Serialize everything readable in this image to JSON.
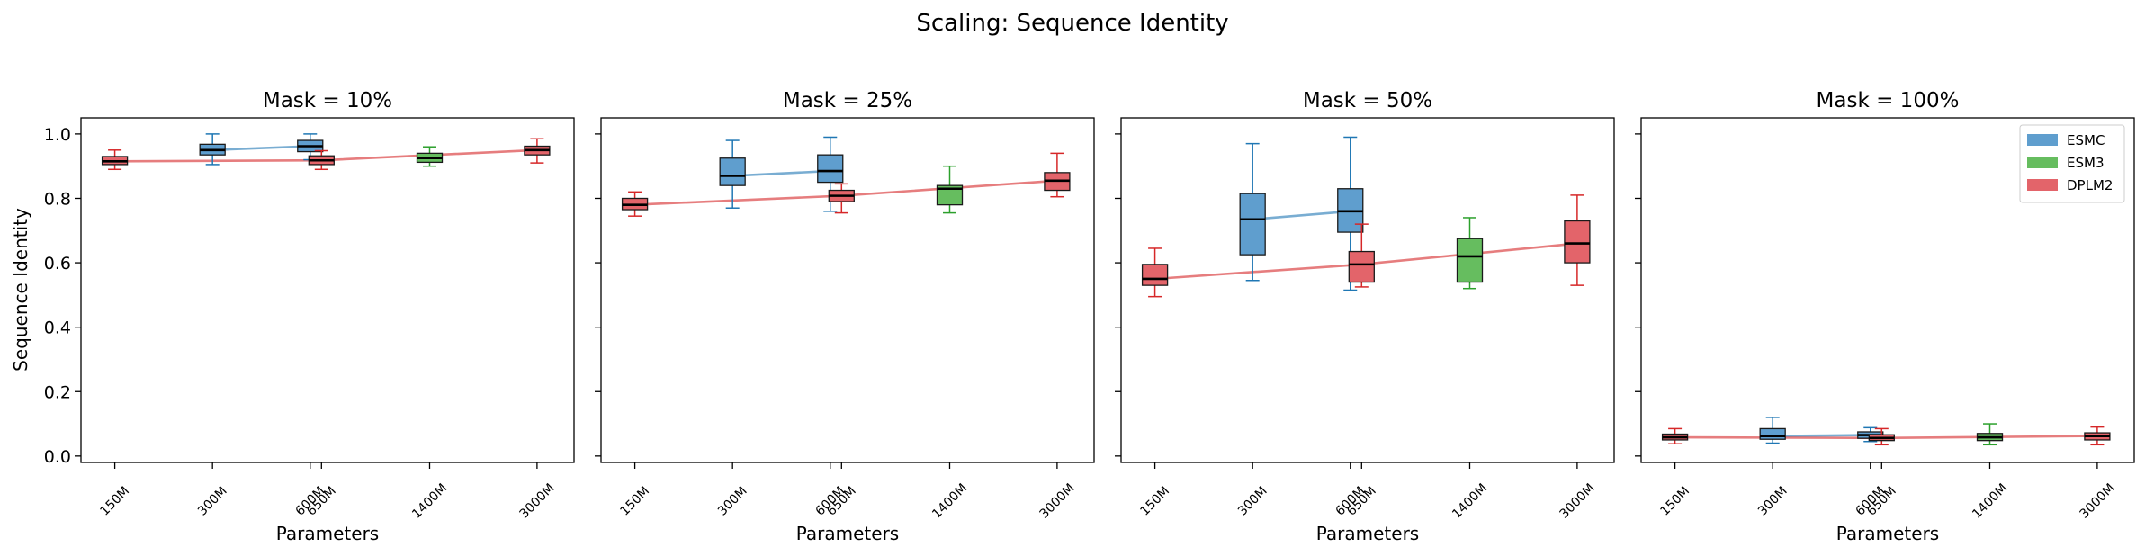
{
  "suptitle": "Scaling: Sequence Identity",
  "chart_data": {
    "type": "box",
    "title": "Scaling: Sequence Identity",
    "xlabel": "Parameters",
    "ylabel": "Sequence Identity",
    "ylim": [
      -0.02,
      1.05
    ],
    "yticks": [
      "0.0",
      "0.2",
      "0.4",
      "0.6",
      "0.8",
      "1.0"
    ],
    "x_scale": "log",
    "xlim_millions": [
      118,
      3900
    ],
    "legend_location": "upper right (last panel)",
    "grid": false,
    "series_colors": {
      "ESMC": "#1f77b4",
      "ESM3": "#2ca02c",
      "DPLM2": "#d62728"
    },
    "series_fill": {
      "ESMC": "#5f9ece",
      "ESM3": "#66bd5f",
      "DPLM2": "#e3646a"
    },
    "legend": [
      "ESMC",
      "ESM3",
      "DPLM2"
    ],
    "panels": [
      {
        "title": "Mask = 10%",
        "series": [
          {
            "name": "ESMC",
            "boxes": [
              {
                "x_label": "300M",
                "x": 300,
                "whislo": 0.905,
                "q1": 0.935,
                "med": 0.95,
                "q3": 0.968,
                "whishi": 1.0
              },
              {
                "x_label": "600M",
                "x": 600,
                "whislo": 0.92,
                "q1": 0.945,
                "med": 0.962,
                "q3": 0.98,
                "whishi": 1.0
              }
            ]
          },
          {
            "name": "ESM3",
            "boxes": [
              {
                "x_label": "1400M",
                "x": 1400,
                "whislo": 0.9,
                "q1": 0.912,
                "med": 0.925,
                "q3": 0.94,
                "whishi": 0.96
              }
            ]
          },
          {
            "name": "DPLM2",
            "boxes": [
              {
                "x_label": "150M",
                "x": 150,
                "whislo": 0.89,
                "q1": 0.905,
                "med": 0.915,
                "q3": 0.93,
                "whishi": 0.95
              },
              {
                "x_label": "650M",
                "x": 650,
                "whislo": 0.89,
                "q1": 0.905,
                "med": 0.918,
                "q3": 0.932,
                "whishi": 0.948
              },
              {
                "x_label": "3000M",
                "x": 3000,
                "whislo": 0.91,
                "q1": 0.935,
                "med": 0.95,
                "q3": 0.962,
                "whishi": 0.985
              }
            ]
          }
        ]
      },
      {
        "title": "Mask = 25%",
        "series": [
          {
            "name": "ESMC",
            "boxes": [
              {
                "x_label": "300M",
                "x": 300,
                "whislo": 0.77,
                "q1": 0.84,
                "med": 0.87,
                "q3": 0.925,
                "whishi": 0.98
              },
              {
                "x_label": "600M",
                "x": 600,
                "whislo": 0.76,
                "q1": 0.85,
                "med": 0.885,
                "q3": 0.935,
                "whishi": 0.99
              }
            ]
          },
          {
            "name": "ESM3",
            "boxes": [
              {
                "x_label": "1400M",
                "x": 1400,
                "whislo": 0.755,
                "q1": 0.78,
                "med": 0.83,
                "q3": 0.84,
                "whishi": 0.9
              }
            ]
          },
          {
            "name": "DPLM2",
            "boxes": [
              {
                "x_label": "150M",
                "x": 150,
                "whislo": 0.745,
                "q1": 0.765,
                "med": 0.78,
                "q3": 0.8,
                "whishi": 0.82
              },
              {
                "x_label": "650M",
                "x": 650,
                "whislo": 0.755,
                "q1": 0.79,
                "med": 0.808,
                "q3": 0.825,
                "whishi": 0.845
              },
              {
                "x_label": "3000M",
                "x": 3000,
                "whislo": 0.805,
                "q1": 0.825,
                "med": 0.855,
                "q3": 0.88,
                "whishi": 0.94
              }
            ]
          }
        ]
      },
      {
        "title": "Mask = 50%",
        "series": [
          {
            "name": "ESMC",
            "boxes": [
              {
                "x_label": "300M",
                "x": 300,
                "whislo": 0.545,
                "q1": 0.625,
                "med": 0.735,
                "q3": 0.815,
                "whishi": 0.97
              },
              {
                "x_label": "600M",
                "x": 600,
                "whislo": 0.515,
                "q1": 0.695,
                "med": 0.76,
                "q3": 0.83,
                "whishi": 0.99
              }
            ]
          },
          {
            "name": "ESM3",
            "boxes": [
              {
                "x_label": "1400M",
                "x": 1400,
                "whislo": 0.52,
                "q1": 0.54,
                "med": 0.62,
                "q3": 0.675,
                "whishi": 0.74
              }
            ]
          },
          {
            "name": "DPLM2",
            "boxes": [
              {
                "x_label": "150M",
                "x": 150,
                "whislo": 0.495,
                "q1": 0.53,
                "med": 0.55,
                "q3": 0.595,
                "whishi": 0.645
              },
              {
                "x_label": "650M",
                "x": 650,
                "whislo": 0.525,
                "q1": 0.54,
                "med": 0.595,
                "q3": 0.635,
                "whishi": 0.72
              },
              {
                "x_label": "3000M",
                "x": 3000,
                "whislo": 0.53,
                "q1": 0.6,
                "med": 0.66,
                "q3": 0.73,
                "whishi": 0.81
              }
            ]
          }
        ]
      },
      {
        "title": "Mask = 100%",
        "series": [
          {
            "name": "ESMC",
            "boxes": [
              {
                "x_label": "300M",
                "x": 300,
                "whislo": 0.04,
                "q1": 0.052,
                "med": 0.062,
                "q3": 0.085,
                "whishi": 0.12
              },
              {
                "x_label": "600M",
                "x": 600,
                "whislo": 0.045,
                "q1": 0.055,
                "med": 0.065,
                "q3": 0.075,
                "whishi": 0.088
              }
            ]
          },
          {
            "name": "ESM3",
            "boxes": [
              {
                "x_label": "1400M",
                "x": 1400,
                "whislo": 0.035,
                "q1": 0.048,
                "med": 0.058,
                "q3": 0.07,
                "whishi": 0.1
              }
            ]
          },
          {
            "name": "DPLM2",
            "boxes": [
              {
                "x_label": "150M",
                "x": 150,
                "whislo": 0.038,
                "q1": 0.05,
                "med": 0.058,
                "q3": 0.068,
                "whishi": 0.085
              },
              {
                "x_label": "650M",
                "x": 650,
                "whislo": 0.035,
                "q1": 0.048,
                "med": 0.056,
                "q3": 0.066,
                "whishi": 0.085
              },
              {
                "x_label": "3000M",
                "x": 3000,
                "whislo": 0.035,
                "q1": 0.05,
                "med": 0.062,
                "q3": 0.072,
                "whishi": 0.09
              }
            ]
          }
        ]
      }
    ]
  }
}
